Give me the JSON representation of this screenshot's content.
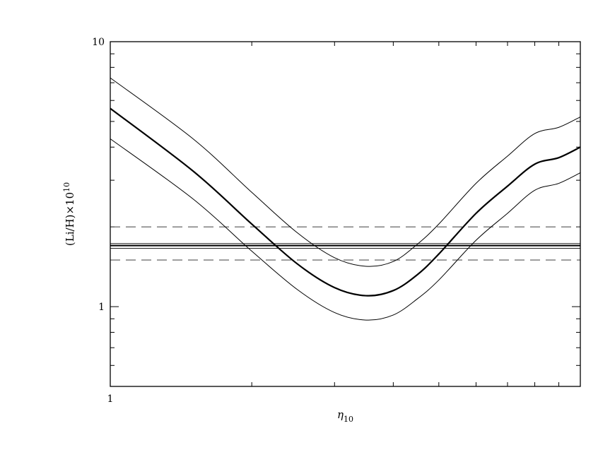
{
  "chart_data": {
    "type": "line",
    "title": "",
    "xlabel": "η",
    "xlabel_sub": "10",
    "ylabel": "(Li/H)×10",
    "ylabel_sup": "10",
    "xscale": "log",
    "yscale": "log",
    "xlim": [
      1,
      10
    ],
    "ylim": [
      0.5,
      10
    ],
    "grid": false,
    "legend": "none",
    "x_tick_labels": [
      {
        "value": 1,
        "label": "1"
      }
    ],
    "y_tick_labels": [
      {
        "value": 1,
        "label": "1"
      },
      {
        "value": 10,
        "label": "10"
      }
    ],
    "x_minor_ticks": [
      2,
      3,
      4,
      5,
      6,
      7,
      8,
      9
    ],
    "y_major_ticks": [
      1,
      10
    ],
    "y_minor_ticks": [
      0.6,
      0.7,
      0.8,
      0.9,
      2,
      3,
      4,
      5,
      6,
      7,
      8,
      9
    ],
    "x": [
      1.0,
      1.5,
      2.0,
      2.5,
      3.0,
      3.5,
      4.0,
      4.5,
      5.0,
      6.0,
      7.0,
      8.0,
      9.0,
      10.0
    ],
    "series": [
      {
        "style": "thick",
        "values": [
          5.6,
          3.25,
          2.05,
          1.45,
          1.18,
          1.1,
          1.15,
          1.32,
          1.58,
          2.25,
          2.85,
          3.45,
          3.65,
          4.0
        ]
      },
      {
        "style": "thin",
        "values": [
          7.3,
          4.3,
          2.7,
          1.9,
          1.53,
          1.42,
          1.48,
          1.72,
          2.05,
          2.92,
          3.7,
          4.5,
          4.75,
          5.2
        ]
      },
      {
        "style": "thin",
        "values": [
          4.3,
          2.55,
          1.62,
          1.16,
          0.95,
          0.89,
          0.93,
          1.07,
          1.26,
          1.78,
          2.25,
          2.75,
          2.92,
          3.2
        ]
      }
    ],
    "hlines": [
      {
        "y": 2.0,
        "style": "dashed"
      },
      {
        "y": 1.73,
        "style": "thin"
      },
      {
        "y": 1.7,
        "style": "thick"
      },
      {
        "y": 1.66,
        "style": "thin"
      },
      {
        "y": 1.5,
        "style": "dashed"
      }
    ],
    "colors": {
      "ink": "#000000",
      "reference": "#555555",
      "background": "#ffffff"
    }
  }
}
